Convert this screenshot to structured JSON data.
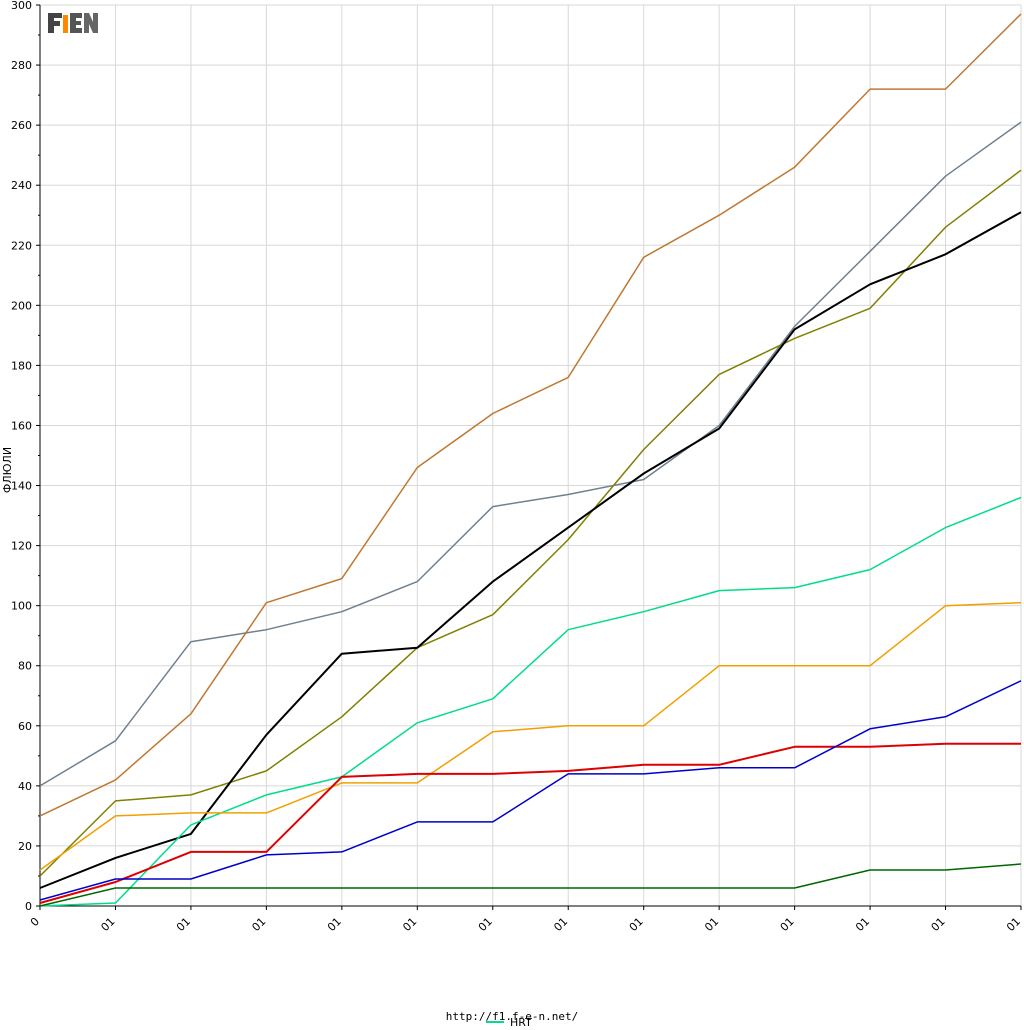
{
  "logo_text": "F1EN",
  "source": "http://f1.f-e-n.net/",
  "chart_data": {
    "type": "line",
    "title": "",
    "xlabel": "",
    "ylabel": "ФЛЮЛИ",
    "ylim": [
      0,
      300
    ],
    "y_ticks": [
      0,
      20,
      40,
      60,
      80,
      100,
      120,
      140,
      160,
      180,
      200,
      220,
      240,
      260,
      280,
      300
    ],
    "x_tick_labels": [
      "0",
      "01",
      "01",
      "01",
      "01",
      "01",
      "01",
      "01",
      "01",
      "01",
      "01",
      "01",
      "01",
      "01"
    ],
    "grid": true,
    "legend_position": "bottom",
    "legend": [
      {
        "name": "HRT",
        "color": "#00dd88"
      }
    ],
    "series": [
      {
        "color": "#c07830",
        "values": [
          30,
          42,
          64,
          101,
          109,
          146,
          164,
          176,
          216,
          230,
          246,
          272,
          272,
          297
        ]
      },
      {
        "color": "#708090",
        "values": [
          40,
          55,
          88,
          92,
          98,
          108,
          133,
          137,
          142,
          160,
          193,
          218,
          243,
          261
        ]
      },
      {
        "color": "#808000",
        "values": [
          10,
          35,
          37,
          45,
          63,
          86,
          97,
          122,
          152,
          177,
          189,
          199,
          226,
          245
        ]
      },
      {
        "color": "#000000",
        "values": [
          6,
          16,
          24,
          57,
          84,
          86,
          108,
          126,
          144,
          159,
          192,
          207,
          217,
          231
        ]
      },
      {
        "name": "HRT",
        "color": "#00dd88",
        "values": [
          0,
          1,
          27,
          37,
          43,
          61,
          69,
          92,
          98,
          105,
          106,
          112,
          126,
          136
        ]
      },
      {
        "color": "#f0a000",
        "values": [
          12,
          30,
          31,
          31,
          41,
          41,
          58,
          60,
          60,
          80,
          80,
          80,
          100,
          101
        ]
      },
      {
        "color": "#dd0000",
        "values": [
          1,
          8,
          18,
          18,
          43,
          44,
          44,
          45,
          47,
          47,
          53,
          53,
          54,
          54
        ]
      },
      {
        "color": "#0000cc",
        "values": [
          2,
          9,
          9,
          17,
          18,
          28,
          28,
          44,
          44,
          46,
          46,
          59,
          63,
          75
        ]
      },
      {
        "color": "#006600",
        "values": [
          0,
          6,
          6,
          6,
          6,
          6,
          6,
          6,
          6,
          6,
          6,
          12,
          12,
          14
        ]
      }
    ]
  }
}
